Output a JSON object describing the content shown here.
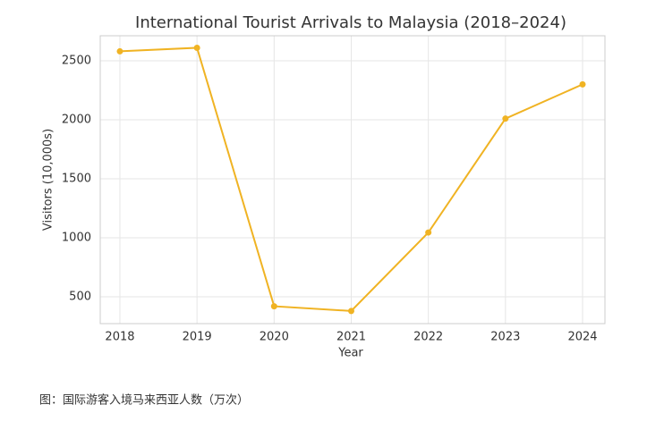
{
  "chart_data": {
    "type": "line",
    "title": "International Tourist Arrivals to Malaysia (2018–2024)",
    "x_label": "Year",
    "y_label": "Visitors (10,000s)",
    "x": [
      2018,
      2019,
      2020,
      2021,
      2022,
      2023,
      2024
    ],
    "series": [
      {
        "name": "Visitors",
        "color": "#f0b323",
        "values": [
          2580,
          2610,
          420,
          380,
          1045,
          2010,
          2300
        ]
      }
    ],
    "xlim": [
      2017.745,
      2024.29
    ],
    "xticks": [
      2018,
      2019,
      2020,
      2021,
      2022,
      2023,
      2024
    ],
    "ylim": [
      273,
      2712
    ],
    "yticks": [
      500,
      1000,
      1500,
      2000,
      2500
    ],
    "grid": true
  },
  "caption": "图：国际游客入境马来西亚人数（万次）"
}
